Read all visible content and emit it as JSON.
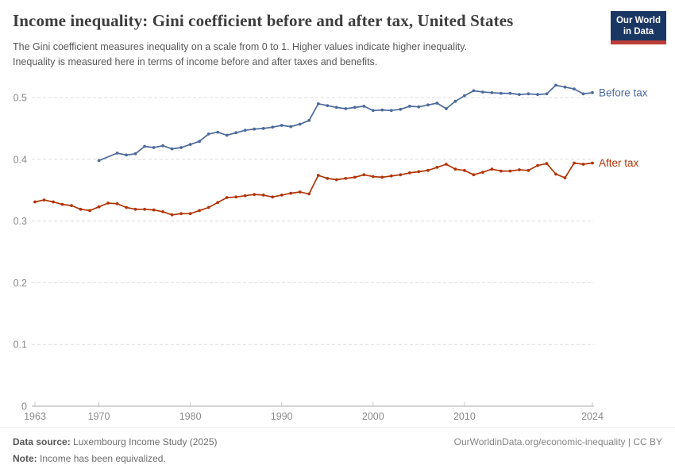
{
  "header": {
    "title": "Income inequality: Gini coefficient before and after tax, United States",
    "subtitle_line1": "The Gini coefficient measures inequality on a scale from 0 to 1. Higher values indicate higher inequality.",
    "subtitle_line2": "Inequality is measured here in terms of income before and after taxes and benefits.",
    "logo": {
      "line1": "Our World",
      "line2": "in Data"
    }
  },
  "chart_data": {
    "type": "line",
    "title": "Income inequality: Gini coefficient before and after tax, United States",
    "xlabel": "",
    "ylabel": "",
    "x": [
      1963,
      1964,
      1965,
      1966,
      1967,
      1968,
      1969,
      1970,
      1971,
      1972,
      1973,
      1974,
      1975,
      1976,
      1977,
      1978,
      1979,
      1980,
      1981,
      1982,
      1983,
      1984,
      1985,
      1986,
      1987,
      1988,
      1989,
      1990,
      1991,
      1992,
      1993,
      1994,
      1995,
      1996,
      1997,
      1998,
      1999,
      2000,
      2001,
      2002,
      2003,
      2004,
      2005,
      2006,
      2007,
      2008,
      2009,
      2010,
      2011,
      2012,
      2013,
      2014,
      2015,
      2016,
      2017,
      2018,
      2019,
      2020,
      2021,
      2022,
      2023,
      2024
    ],
    "series": [
      {
        "name": "Before tax",
        "color": "#4C6A9C",
        "values": [
          null,
          null,
          null,
          null,
          null,
          null,
          null,
          0.398,
          null,
          0.41,
          0.407,
          0.409,
          0.421,
          0.419,
          0.422,
          0.417,
          0.419,
          0.424,
          0.429,
          0.441,
          0.444,
          0.439,
          0.443,
          0.447,
          0.449,
          0.45,
          0.452,
          0.455,
          0.453,
          0.457,
          0.463,
          0.49,
          0.487,
          0.484,
          0.482,
          0.484,
          0.486,
          0.479,
          0.48,
          0.479,
          0.481,
          0.486,
          0.485,
          0.488,
          0.491,
          0.482,
          0.494,
          0.503,
          0.511,
          0.509,
          0.508,
          0.507,
          0.507,
          0.505,
          0.506,
          0.505,
          0.506,
          0.52,
          0.517,
          0.514,
          0.506,
          0.508
        ]
      },
      {
        "name": "After tax",
        "color": "#B13507",
        "values": [
          0.331,
          0.334,
          0.331,
          0.327,
          0.325,
          0.319,
          0.317,
          0.323,
          0.329,
          0.328,
          0.322,
          0.319,
          0.319,
          0.318,
          0.315,
          0.31,
          0.312,
          0.312,
          0.317,
          0.322,
          0.33,
          0.338,
          0.339,
          0.341,
          0.343,
          0.342,
          0.339,
          0.342,
          0.345,
          0.347,
          0.344,
          0.374,
          0.369,
          0.367,
          0.369,
          0.371,
          0.375,
          0.372,
          0.371,
          0.373,
          0.375,
          0.378,
          0.38,
          0.382,
          0.387,
          0.392,
          0.384,
          0.382,
          0.375,
          0.379,
          0.384,
          0.381,
          0.381,
          0.383,
          0.382,
          0.39,
          0.393,
          0.376,
          0.37,
          0.394,
          0.392,
          0.394
        ]
      }
    ],
    "ylim": [
      0,
      0.54
    ],
    "xlim": [
      1963,
      2024
    ],
    "yticks": [
      0,
      0.1,
      0.2,
      0.3,
      0.4,
      0.5
    ],
    "xticks": [
      1963,
      1970,
      1980,
      1990,
      2000,
      2010,
      2024
    ],
    "grid": "horizontal dashed",
    "legend_position": "line-end labels",
    "colors": {
      "grid": "#dcdcdc",
      "axis": "#a8a8a8",
      "tick_text": "#8a8a8a"
    }
  },
  "footer": {
    "data_source_label": "Data source:",
    "data_source_value": "Luxembourg Income Study (2025)",
    "note_label": "Note:",
    "note_value": "Income has been equivalized.",
    "credit": "OurWorldinData.org/economic-inequality | CC BY"
  }
}
